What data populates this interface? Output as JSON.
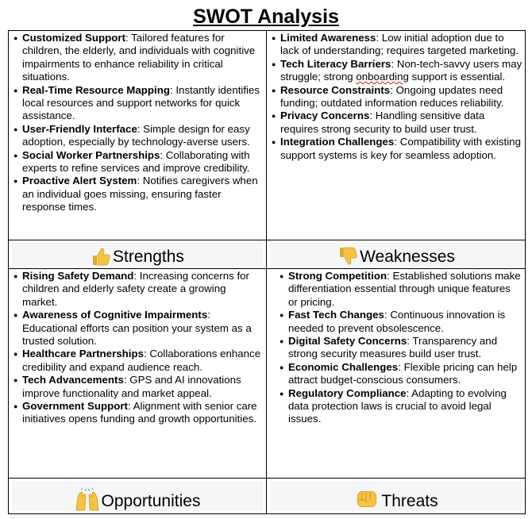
{
  "title": "SWOT Analysis",
  "strengths": {
    "label": "Strengths",
    "icon": "thumbs-up-icon",
    "items": [
      {
        "term": "Customized Support",
        "text": ": Tailored features for children, the elderly, and individuals with cognitive impairments to enhance reliability in critical situations."
      },
      {
        "term": "Real-Time Resource Mapping",
        "text": ": Instantly identifies local resources and support networks for quick assistance."
      },
      {
        "term": "User-Friendly Interface",
        "text": ": Simple design for easy adoption, especially by technology-averse users."
      },
      {
        "term": " Social Worker Partnerships",
        "text": ": Collaborating with experts to refine services and improve credibility."
      },
      {
        "term": "Proactive Alert System",
        "text": ": Notifies caregivers when an individual goes missing, ensuring faster response times."
      }
    ]
  },
  "weaknesses": {
    "label": "Weaknesses",
    "icon": "thumbs-down-icon",
    "items": [
      {
        "term": "Limited Awareness",
        "text": ": Low initial adoption due to lack of understanding; requires targeted marketing."
      },
      {
        "term": "Tech Literacy Barriers",
        "text": ": Non-tech-savvy users may struggle; strong ",
        "flag": "onboarding",
        "after": " support is essential."
      },
      {
        "term": "Resource Constraints",
        "text": ": Ongoing updates need funding; outdated information reduces reliability."
      },
      {
        "term": "Privacy Concerns",
        "text": ": Handling sensitive data requires strong security to build user trust."
      },
      {
        "term": "Integration Challenges",
        "text": ": Compatibility with existing support systems is key for seamless adoption."
      }
    ]
  },
  "opportunities": {
    "label": "Opportunities",
    "icon": "raised-hands-icon",
    "items": [
      {
        "term": "Rising Safety Demand",
        "text": ": Increasing concerns for children and elderly safety create a growing market."
      },
      {
        "term": "Awareness of Cognitive Impairments",
        "text": ": Educational efforts can position your system as a trusted solution."
      },
      {
        "term": "Healthcare Partnerships",
        "text": ": Collaborations enhance credibility and expand audience reach."
      },
      {
        "term": "Tech Advancements",
        "text": ": GPS and AI innovations improve functionality and market appeal."
      },
      {
        "term": "Government Support",
        "text": ": Alignment with senior care initiatives opens funding and growth opportunities."
      }
    ]
  },
  "threats": {
    "label": "Threats",
    "icon": "fist-icon",
    "items": [
      {
        "term": "Strong Competition",
        "text": ": Established solutions make differentiation essential through unique features or pricing."
      },
      {
        "term": "Fast Tech Changes",
        "text": ": Continuous innovation is needed to prevent obsolescence."
      },
      {
        "term": "Digital Safety Concerns",
        "text": ": Transparency and strong security measures build user trust."
      },
      {
        "term": "Economic Challenges",
        "text": ": Flexible pricing can help attract budget-conscious consumers."
      },
      {
        "term": " Regulatory Compliance",
        "text": ": Adapting to evolving data protection laws is crucial to avoid legal issues."
      }
    ]
  },
  "colors": {
    "emoji_yellow": "#f6c343",
    "emoji_shade": "#d99a1e",
    "band_bg": "#f5f6f8"
  }
}
